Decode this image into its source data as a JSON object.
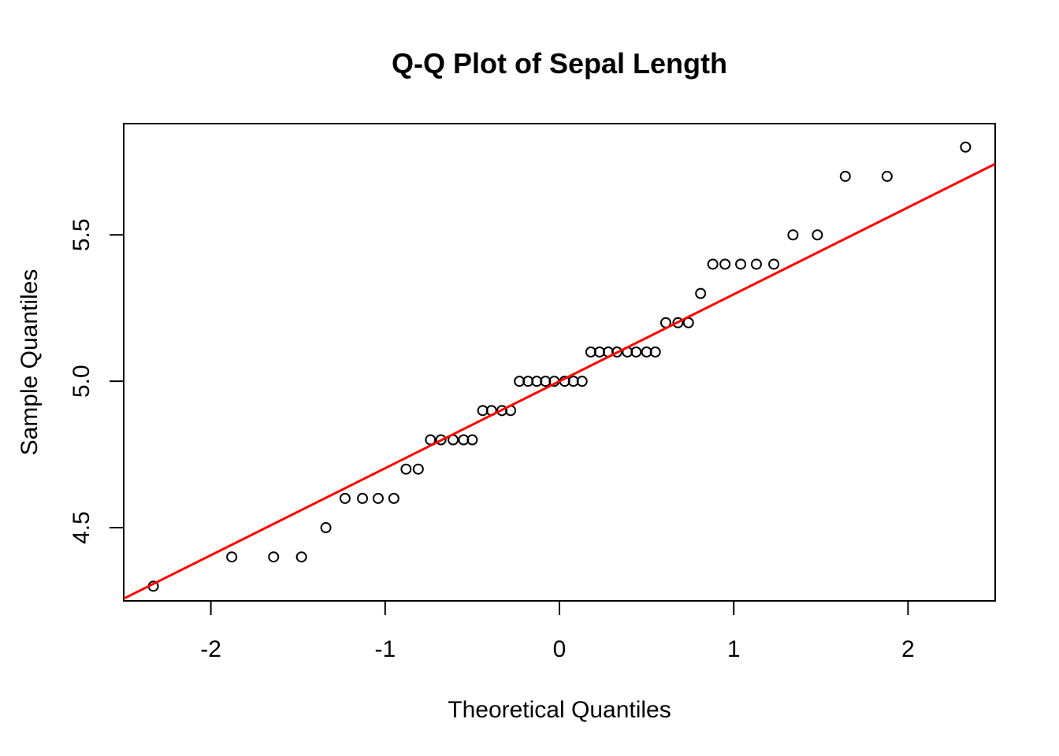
{
  "chart_data": {
    "type": "scatter",
    "title": "Q-Q Plot of Sepal Length",
    "xlabel": "Theoretical Quantiles",
    "ylabel": "Sample Quantiles",
    "xlim": [
      -2.5,
      2.5
    ],
    "ylim": [
      4.25,
      5.88
    ],
    "x_ticks": [
      -2,
      -1,
      0,
      1,
      2
    ],
    "x_tick_labels": [
      "-2",
      "-1",
      "0",
      "1",
      "2"
    ],
    "y_ticks": [
      4.5,
      5.0,
      5.5
    ],
    "y_tick_labels": [
      "4.5",
      "5.0",
      "5.5"
    ],
    "grid": false,
    "colors": {
      "points": "#000000",
      "reference_line": "#ff0000",
      "axes": "#000000"
    },
    "series": [
      {
        "values": [
          [
            -2.33,
            4.3
          ],
          [
            -1.88,
            4.4
          ],
          [
            -1.64,
            4.4
          ],
          [
            -1.48,
            4.4
          ],
          [
            -1.34,
            4.5
          ],
          [
            -1.23,
            4.6
          ],
          [
            -1.13,
            4.6
          ],
          [
            -1.04,
            4.6
          ],
          [
            -0.95,
            4.6
          ],
          [
            -0.88,
            4.7
          ],
          [
            -0.81,
            4.7
          ],
          [
            -0.74,
            4.8
          ],
          [
            -0.68,
            4.8
          ],
          [
            -0.61,
            4.8
          ],
          [
            -0.55,
            4.8
          ],
          [
            -0.5,
            4.8
          ],
          [
            -0.44,
            4.9
          ],
          [
            -0.39,
            4.9
          ],
          [
            -0.33,
            4.9
          ],
          [
            -0.28,
            4.9
          ],
          [
            -0.23,
            5.0
          ],
          [
            -0.18,
            5.0
          ],
          [
            -0.13,
            5.0
          ],
          [
            -0.08,
            5.0
          ],
          [
            -0.03,
            5.0
          ],
          [
            0.03,
            5.0
          ],
          [
            0.08,
            5.0
          ],
          [
            0.13,
            5.0
          ],
          [
            0.18,
            5.1
          ],
          [
            0.23,
            5.1
          ],
          [
            0.28,
            5.1
          ],
          [
            0.33,
            5.1
          ],
          [
            0.39,
            5.1
          ],
          [
            0.44,
            5.1
          ],
          [
            0.5,
            5.1
          ],
          [
            0.55,
            5.1
          ],
          [
            0.61,
            5.2
          ],
          [
            0.68,
            5.2
          ],
          [
            0.74,
            5.2
          ],
          [
            0.81,
            5.3
          ],
          [
            0.88,
            5.4
          ],
          [
            0.95,
            5.4
          ],
          [
            1.04,
            5.4
          ],
          [
            1.13,
            5.4
          ],
          [
            1.23,
            5.4
          ],
          [
            1.34,
            5.5
          ],
          [
            1.48,
            5.5
          ],
          [
            1.64,
            5.7
          ],
          [
            1.88,
            5.7
          ],
          [
            2.33,
            5.8
          ]
        ]
      }
    ],
    "reference_line": {
      "slope": 0.297,
      "intercept": 5.0
    }
  }
}
